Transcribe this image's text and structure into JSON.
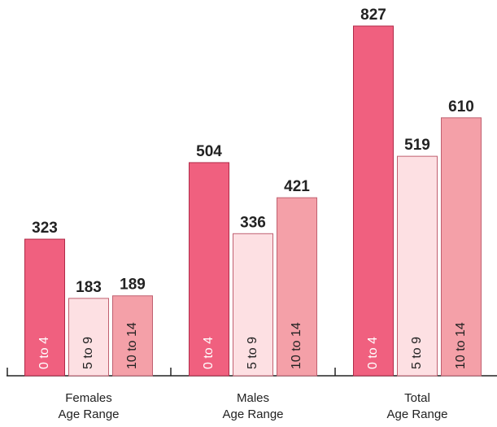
{
  "chart_data": {
    "type": "bar",
    "categories": [
      [
        "Females",
        "Age Range"
      ],
      [
        "Males",
        "Age Range"
      ],
      [
        "Total",
        "Age Range"
      ]
    ],
    "series": [
      {
        "name": "0 to 4",
        "color": "#f0607f",
        "values": [
          323,
          504,
          827
        ]
      },
      {
        "name": "5 to 9",
        "color": "#fde0e3",
        "values": [
          183,
          336,
          519
        ]
      },
      {
        "name": "10 to 14",
        "color": "#f4a0a8",
        "values": [
          189,
          421,
          610
        ]
      }
    ]
  }
}
